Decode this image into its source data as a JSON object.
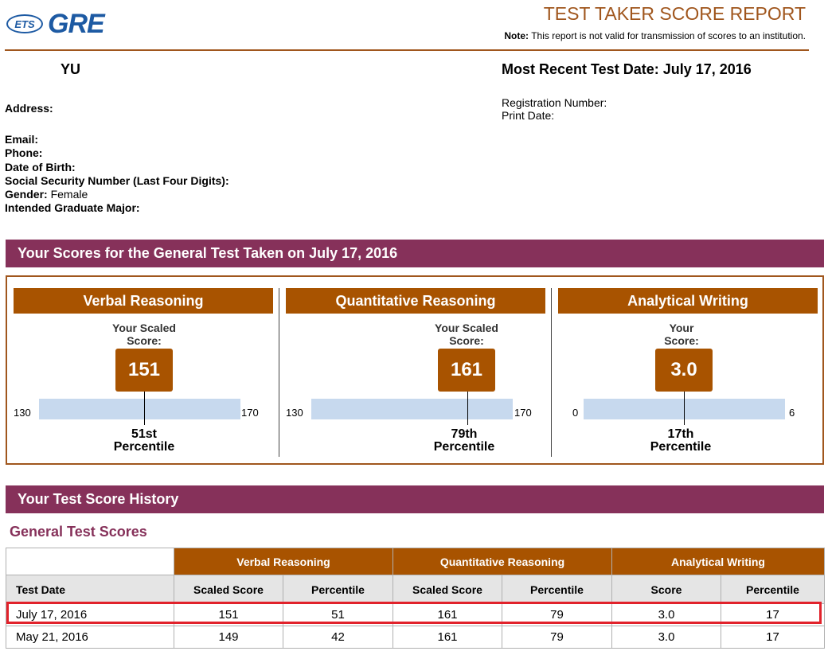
{
  "header": {
    "logo_ets": "ETS",
    "logo_gre": "GRE",
    "title": "TEST TAKER SCORE REPORT",
    "note_label": "Note:",
    "note_text": "This report is not valid for transmission of scores to an institution."
  },
  "candidate": {
    "name": "YU",
    "recent_test_label": "Most Recent Test Date: July 17, 2016",
    "address_label": "Address:",
    "email_label": "Email:",
    "phone_label": "Phone:",
    "dob_label": "Date of Birth:",
    "ssn_label": "Social Security Number (Last Four Digits):",
    "gender_label": "Gender:",
    "gender_value": "Female",
    "major_label": "Intended Graduate Major:",
    "registration_label": "Registration Number:",
    "print_date_label": "Print Date:"
  },
  "scores_section": {
    "title": "Your Scores for the General Test Taken on July 17, 2016",
    "sections": [
      {
        "name": "Verbal Reasoning",
        "label_line1": "Your Scaled",
        "label_line2": "Score:",
        "score": "151",
        "min": "130",
        "max": "170",
        "percentile_line1": "51st",
        "percentile_line2": "Percentile"
      },
      {
        "name": "Quantitative Reasoning",
        "label_line1": "Your Scaled",
        "label_line2": "Score:",
        "score": "161",
        "min": "130",
        "max": "170",
        "percentile_line1": "79th",
        "percentile_line2": "Percentile"
      },
      {
        "name": "Analytical Writing",
        "label_line1": "Your",
        "label_line2": "Score:",
        "score": "3.0",
        "min": "0",
        "max": "6",
        "percentile_line1": "17th",
        "percentile_line2": "Percentile"
      }
    ]
  },
  "history": {
    "title": "Your Test Score History",
    "subtitle": "General Test Scores",
    "groups": [
      "Verbal Reasoning",
      "Quantitative Reasoning",
      "Analytical Writing"
    ],
    "columns": [
      "Test Date",
      "Scaled Score",
      "Percentile",
      "Scaled Score",
      "Percentile",
      "Score",
      "Percentile"
    ],
    "rows": [
      [
        "July 17, 2016",
        "151",
        "51",
        "161",
        "79",
        "3.0",
        "17"
      ],
      [
        "May 21, 2016",
        "149",
        "42",
        "161",
        "79",
        "3.0",
        "17"
      ]
    ]
  },
  "colors": {
    "maroon": "#86315a",
    "orange": "#a85300",
    "bar": "#c7d9ee",
    "highlight": "#e1222b",
    "logo_blue": "#1d5aa3"
  }
}
